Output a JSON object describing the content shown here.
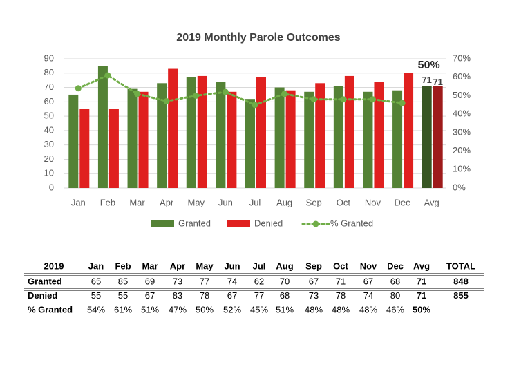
{
  "chart_data": {
    "type": "bar",
    "title": "2019 Monthly Parole Outcomes",
    "categories": [
      "Jan",
      "Feb",
      "Mar",
      "Apr",
      "May",
      "Jun",
      "Jul",
      "Aug",
      "Sep",
      "Oct",
      "Nov",
      "Dec",
      "Avg"
    ],
    "series": [
      {
        "name": "Granted",
        "type": "bar",
        "color": "#548235",
        "last_color": "#375623",
        "values": [
          65,
          85,
          69,
          73,
          77,
          74,
          62,
          70,
          67,
          71,
          67,
          68,
          71
        ],
        "value_labels": [
          null,
          null,
          null,
          null,
          null,
          null,
          null,
          null,
          null,
          null,
          null,
          null,
          "71"
        ]
      },
      {
        "name": "Denied",
        "type": "bar",
        "color": "#e0201f",
        "last_color": "#9e1b1b",
        "values": [
          55,
          55,
          67,
          83,
          78,
          67,
          77,
          68,
          73,
          78,
          74,
          80,
          71
        ],
        "value_labels": [
          null,
          null,
          null,
          null,
          null,
          null,
          null,
          null,
          null,
          null,
          null,
          null,
          "71"
        ]
      },
      {
        "name": "% Granted",
        "type": "line",
        "axis": "y2",
        "color": "#70ad47",
        "values": [
          54,
          61,
          51,
          47,
          50,
          52,
          45,
          51,
          48,
          48,
          48,
          46,
          null
        ]
      }
    ],
    "annotations": [
      {
        "text": "50%",
        "category": 12
      }
    ],
    "ylim": [
      0,
      90
    ],
    "yticks": [
      0,
      10,
      20,
      30,
      40,
      50,
      60,
      70,
      80,
      90
    ],
    "y2lim": [
      0,
      70
    ],
    "y2ticks": [
      {
        "value": 0,
        "label": "0%"
      },
      {
        "value": 10,
        "label": "10%"
      },
      {
        "value": 20,
        "label": "20%"
      },
      {
        "value": 30,
        "label": "30%"
      },
      {
        "value": 40,
        "label": "40%"
      },
      {
        "value": 50,
        "label": "50%"
      },
      {
        "value": 60,
        "label": "60%"
      },
      {
        "value": 70,
        "label": "70%"
      }
    ],
    "grid": true,
    "legend": "bottom"
  },
  "table": {
    "header": [
      "2019",
      "Jan",
      "Feb",
      "Mar",
      "Apr",
      "May",
      "Jun",
      "Jul",
      "Aug",
      "Sep",
      "Oct",
      "Nov",
      "Dec",
      "Avg",
      "TOTAL"
    ],
    "rows": [
      {
        "label": "Granted",
        "cells": [
          65,
          85,
          69,
          73,
          77,
          74,
          62,
          70,
          67,
          71,
          67,
          68,
          71,
          848
        ]
      },
      {
        "label": "Denied",
        "cells": [
          55,
          55,
          67,
          83,
          78,
          67,
          77,
          68,
          73,
          78,
          74,
          80,
          71,
          855
        ]
      },
      {
        "label": "% Granted",
        "cells": [
          "54%",
          "61%",
          "51%",
          "47%",
          "50%",
          "52%",
          "45%",
          "51%",
          "48%",
          "48%",
          "48%",
          "46%",
          "50%"
        ]
      }
    ]
  }
}
